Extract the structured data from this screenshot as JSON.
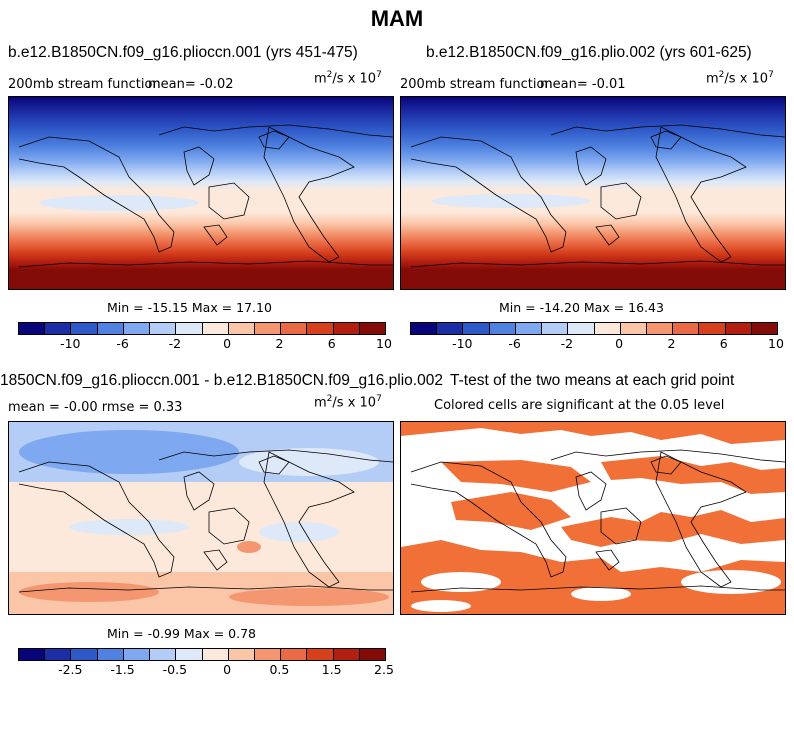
{
  "title": "MAM",
  "panels": {
    "top_left": {
      "title": "b.e12.B1850CN.f09_g16.plioccn.001 (yrs 451-475)",
      "variable": "200mb stream function",
      "mean_label": "mean=  -0.02",
      "units": "m",
      "units_exp": "2",
      "units_rest": "/s x 10",
      "units_exp2": "7",
      "minmax": "Min = -15.15 Max =  17.10"
    },
    "top_right": {
      "title": "b.e12.B1850CN.f09_g16.plio.002 (yrs 601-625)",
      "variable": "200mb stream function",
      "mean_label": "mean=  -0.01",
      "units": "m",
      "units_exp": "2",
      "units_rest": "/s x 10",
      "units_exp2": "7",
      "minmax": "Min = -14.20 Max =  16.43"
    },
    "bottom_left": {
      "title": "1850CN.f09_g16.plioccn.001 - b.e12.B1850CN.f09_g16.plio.002",
      "stats": "mean =  -0.00     rmse =   0.33",
      "units": "m",
      "units_exp": "2",
      "units_rest": "/s x 10",
      "units_exp2": "7",
      "minmax": "Min = -0.99 Max =   0.78"
    },
    "bottom_right": {
      "title": "T-test of the two means at each grid point",
      "subtitle": "Colored cells are significant at the 0.05 level"
    }
  },
  "colorbar_top": {
    "colors": [
      "#08057a",
      "#1c2ea6",
      "#2e59c8",
      "#4f82e0",
      "#7ea8ef",
      "#b3cdf7",
      "#dde8f8",
      "#fde9dc",
      "#fbc6a8",
      "#f49770",
      "#e96a45",
      "#d6401d",
      "#b21e10",
      "#830b08"
    ],
    "ticks": [
      "-10",
      "-6",
      "-2",
      "0",
      "2",
      "6",
      "10"
    ]
  },
  "colorbar_bottom": {
    "colors": [
      "#08057a",
      "#1c2ea6",
      "#2e59c8",
      "#4f82e0",
      "#7ea8ef",
      "#b3cdf7",
      "#dde8f8",
      "#fde9dc",
      "#fbc6a8",
      "#f49770",
      "#e96a45",
      "#d6401d",
      "#b21e10",
      "#830b08"
    ],
    "ticks": [
      "-2.5",
      "-1.5",
      "-0.5",
      "0",
      "0.5",
      "1.5",
      "2.5"
    ]
  },
  "significance_color": "#f07038"
}
